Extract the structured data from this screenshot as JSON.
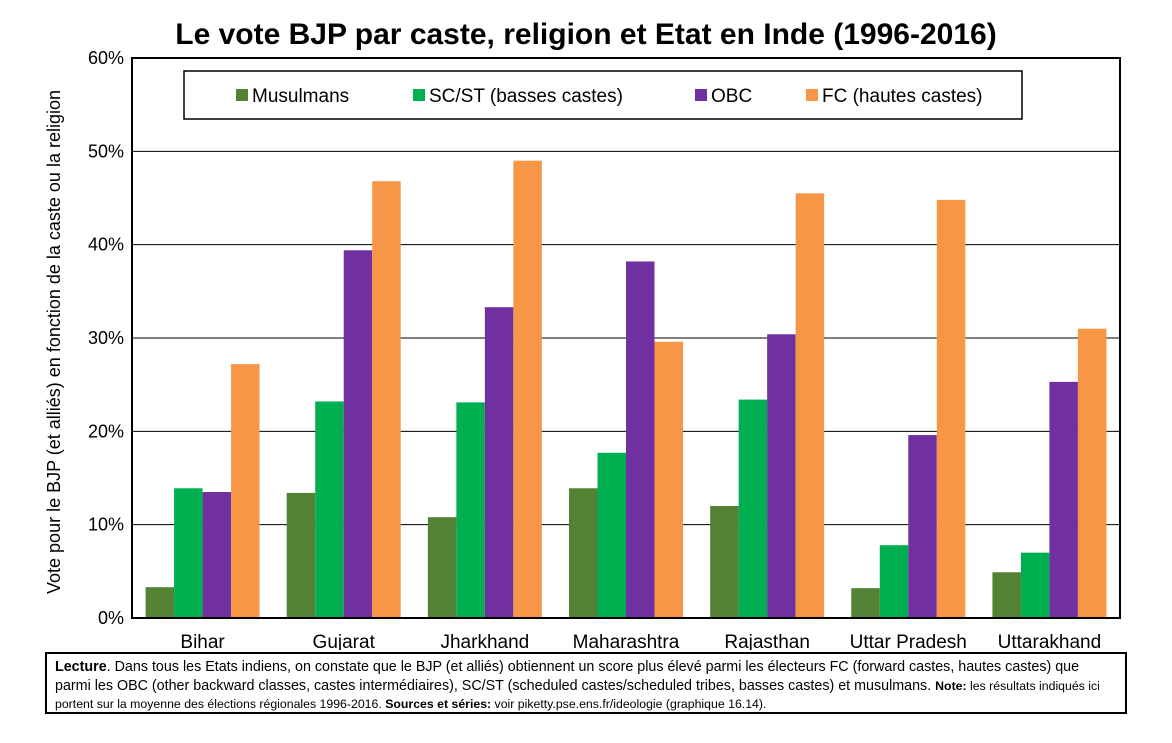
{
  "chart_data": {
    "type": "bar",
    "title": "Le vote BJP par caste, religion et Etat en Inde (1996-2016)",
    "ylabel": "Vote pour le BJP (et alliés) en fonction de la caste ou la religion",
    "xlabel": "",
    "ylim": [
      0,
      60
    ],
    "yticks": [
      0,
      10,
      20,
      30,
      40,
      50,
      60
    ],
    "ytick_labels": [
      "0%",
      "10%",
      "20%",
      "30%",
      "40%",
      "50%",
      "60%"
    ],
    "grid": true,
    "legend_position": "top",
    "categories": [
      "Bihar",
      "Gujarat",
      "Jharkhand",
      "Maharashtra",
      "Rajasthan",
      "Uttar Pradesh",
      "Uttarakhand"
    ],
    "series": [
      {
        "name": "Musulmans",
        "color": "#548235",
        "values": [
          3.3,
          13.4,
          10.8,
          13.9,
          12.0,
          3.2,
          4.9
        ]
      },
      {
        "name": "SC/ST (basses castes)",
        "color": "#00b050",
        "values": [
          13.9,
          23.2,
          23.1,
          17.7,
          23.4,
          7.8,
          7.0
        ]
      },
      {
        "name": "OBC",
        "color": "#7030a0",
        "values": [
          13.5,
          39.4,
          33.3,
          38.2,
          30.4,
          19.6,
          25.3
        ]
      },
      {
        "name": "FC (hautes castes)",
        "color": "#f79646",
        "values": [
          27.2,
          46.8,
          49.0,
          29.6,
          45.5,
          44.8,
          31.0
        ]
      }
    ]
  },
  "note": {
    "lecture_label": "Lecture",
    "lecture_text": ". Dans tous les Etats indiens, on constate que le BJP (et alliés) obtiennent un score plus élevé parmi les électeurs FC (forward castes, hautes castes) que parmi les OBC (other backward classes, castes intermédiaires), SC/ST (scheduled castes/scheduled tribes, basses castes) et musulmans.",
    "note_label": "Note:",
    "note_text": " les résultats indiqués ici portent sur la moyenne des élections régionales 1996-2016.",
    "sources_label": "Sources et séries:",
    "sources_text": " voir piketty.pse.ens.fr/ideologie (graphique 16.14)."
  }
}
